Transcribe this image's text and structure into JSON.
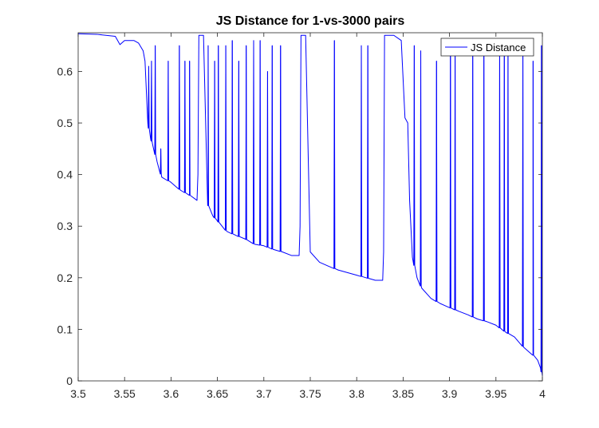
{
  "chart_data": {
    "type": "line",
    "title": "JS Distance for 1-vs-3000 pairs",
    "xlabel": "",
    "ylabel": "",
    "xlim": [
      3.5,
      4.0
    ],
    "ylim": [
      0,
      0.675
    ],
    "grid": false,
    "legend_position": "top-right",
    "x_ticks": [
      3.5,
      3.55,
      3.6,
      3.65,
      3.7,
      3.75,
      3.8,
      3.85,
      3.9,
      3.95,
      4.0
    ],
    "x_tick_labels": [
      "3.5",
      "3.55",
      "3.6",
      "3.65",
      "3.7",
      "3.75",
      "3.8",
      "3.85",
      "3.9",
      "3.95",
      "4"
    ],
    "y_ticks": [
      0,
      0.1,
      0.2,
      0.3,
      0.4,
      0.5,
      0.6
    ],
    "y_tick_labels": [
      "0",
      "0.1",
      "0.2",
      "0.3",
      "0.4",
      "0.5",
      "0.6"
    ],
    "color": "#0000ff",
    "series": [
      {
        "name": "JS Distance",
        "baseline": {
          "x": [
            3.5,
            3.52,
            3.54,
            3.545,
            3.55,
            3.56,
            3.565,
            3.57,
            3.572,
            3.575,
            3.578,
            3.58,
            3.585,
            3.59,
            3.6,
            3.61,
            3.62,
            3.628,
            3.629,
            3.63,
            3.635,
            3.64,
            3.645,
            3.65,
            3.66,
            3.67,
            3.68,
            3.69,
            3.7,
            3.71,
            3.72,
            3.73,
            3.738,
            3.739,
            3.74,
            3.745,
            3.75,
            3.76,
            3.77,
            3.78,
            3.79,
            3.8,
            3.81,
            3.82,
            3.828,
            3.829,
            3.83,
            3.84,
            3.848,
            3.852,
            3.855,
            3.857,
            3.86,
            3.865,
            3.87,
            3.88,
            3.89,
            3.9,
            3.91,
            3.92,
            3.93,
            3.94,
            3.95,
            3.96,
            3.97,
            3.98,
            3.99,
            3.995,
            3.998,
            4.0
          ],
          "y": [
            0.673,
            0.672,
            0.668,
            0.652,
            0.66,
            0.66,
            0.655,
            0.64,
            0.62,
            0.5,
            0.47,
            0.46,
            0.425,
            0.395,
            0.385,
            0.37,
            0.36,
            0.35,
            0.4,
            0.67,
            0.67,
            0.34,
            0.32,
            0.31,
            0.29,
            0.282,
            0.275,
            0.265,
            0.262,
            0.255,
            0.25,
            0.243,
            0.243,
            0.3,
            0.67,
            0.67,
            0.25,
            0.23,
            0.222,
            0.215,
            0.21,
            0.205,
            0.2,
            0.195,
            0.195,
            0.25,
            0.67,
            0.67,
            0.66,
            0.51,
            0.5,
            0.35,
            0.24,
            0.2,
            0.18,
            0.16,
            0.15,
            0.142,
            0.135,
            0.128,
            0.12,
            0.115,
            0.108,
            0.095,
            0.085,
            0.065,
            0.05,
            0.04,
            0.025,
            0.01
          ]
        },
        "spikes": [
          {
            "x": 3.576,
            "y": 0.61
          },
          {
            "x": 3.579,
            "y": 0.62
          },
          {
            "x": 3.583,
            "y": 0.65
          },
          {
            "x": 3.589,
            "y": 0.45
          },
          {
            "x": 3.597,
            "y": 0.62
          },
          {
            "x": 3.609,
            "y": 0.65
          },
          {
            "x": 3.615,
            "y": 0.62
          },
          {
            "x": 3.62,
            "y": 0.62
          },
          {
            "x": 3.64,
            "y": 0.65
          },
          {
            "x": 3.647,
            "y": 0.62
          },
          {
            "x": 3.651,
            "y": 0.65
          },
          {
            "x": 3.659,
            "y": 0.65
          },
          {
            "x": 3.666,
            "y": 0.66
          },
          {
            "x": 3.673,
            "y": 0.62
          },
          {
            "x": 3.681,
            "y": 0.65
          },
          {
            "x": 3.689,
            "y": 0.66
          },
          {
            "x": 3.696,
            "y": 0.66
          },
          {
            "x": 3.704,
            "y": 0.6
          },
          {
            "x": 3.709,
            "y": 0.65
          },
          {
            "x": 3.718,
            "y": 0.65
          },
          {
            "x": 3.776,
            "y": 0.66
          },
          {
            "x": 3.805,
            "y": 0.65
          },
          {
            "x": 3.812,
            "y": 0.65
          },
          {
            "x": 3.862,
            "y": 0.65
          },
          {
            "x": 3.869,
            "y": 0.64
          },
          {
            "x": 3.886,
            "y": 0.62
          },
          {
            "x": 3.901,
            "y": 0.65
          },
          {
            "x": 3.906,
            "y": 0.65
          },
          {
            "x": 3.925,
            "y": 0.63
          },
          {
            "x": 3.937,
            "y": 0.64
          },
          {
            "x": 3.954,
            "y": 0.65
          },
          {
            "x": 3.959,
            "y": 0.63
          },
          {
            "x": 3.963,
            "y": 0.65
          },
          {
            "x": 3.979,
            "y": 0.65
          },
          {
            "x": 3.99,
            "y": 0.62
          },
          {
            "x": 3.999,
            "y": 0.65
          }
        ]
      }
    ]
  }
}
